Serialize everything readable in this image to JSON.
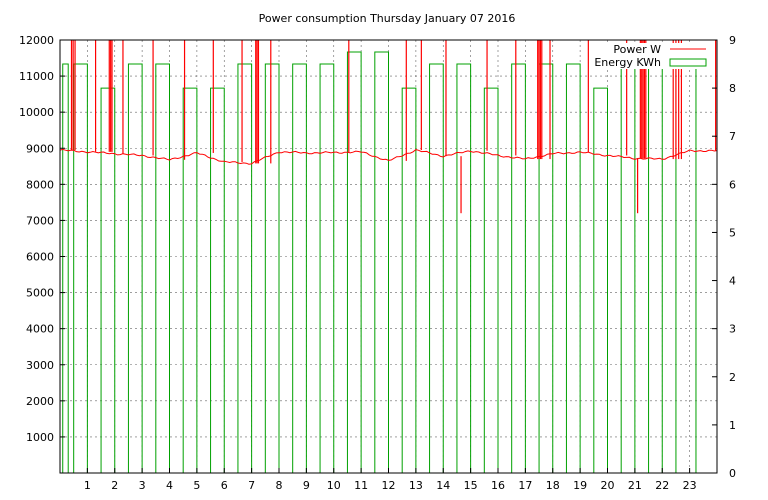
{
  "chart_data": {
    "type": "line",
    "title": "Power consumption Thursday January 07 2016",
    "x_ticks": [
      "1",
      "2",
      "3",
      "4",
      "5",
      "6",
      "7",
      "8",
      "9",
      "10",
      "11",
      "12",
      "13",
      "14",
      "15",
      "16",
      "17",
      "18",
      "19",
      "20",
      "21",
      "22",
      "23"
    ],
    "xlim": [
      0,
      24
    ],
    "y_ticks": [
      "1000",
      "2000",
      "3000",
      "4000",
      "5000",
      "6000",
      "7000",
      "8000",
      "9000",
      "10000",
      "11000",
      "12000"
    ],
    "ylim": [
      0,
      12000
    ],
    "y2_ticks": [
      "0",
      "1",
      "2",
      "3",
      "4",
      "5",
      "6",
      "7",
      "8",
      "9"
    ],
    "y2lim": [
      0,
      9
    ],
    "grid": true,
    "legend_position": "top-right",
    "colors": {
      "power": "#ff0000",
      "energy": "#00a000",
      "grid": "#666666"
    },
    "series": [
      {
        "name": "Power W",
        "axis": "left",
        "style": "line",
        "baseline_hourly": [
          8950,
          8900,
          8850,
          8800,
          8680,
          8870,
          8620,
          8580,
          8900,
          8870,
          8880,
          8900,
          8650,
          8950,
          8780,
          8930,
          8800,
          8700,
          8850,
          8890,
          8800,
          8720,
          8700,
          8930
        ],
        "spikes": [
          {
            "x": 0.42,
            "y": 12000
          },
          {
            "x": 0.48,
            "y": 12000
          },
          {
            "x": 0.55,
            "y": 12000
          },
          {
            "x": 1.3,
            "y": 12000
          },
          {
            "x": 1.8,
            "y": 12000
          },
          {
            "x": 1.85,
            "y": 12000
          },
          {
            "x": 1.9,
            "y": 12000
          },
          {
            "x": 2.3,
            "y": 12000
          },
          {
            "x": 3.4,
            "y": 12000
          },
          {
            "x": 4.55,
            "y": 12000
          },
          {
            "x": 5.6,
            "y": 12000
          },
          {
            "x": 6.65,
            "y": 12000
          },
          {
            "x": 7.15,
            "y": 12000
          },
          {
            "x": 7.2,
            "y": 12000
          },
          {
            "x": 7.25,
            "y": 12000
          },
          {
            "x": 7.7,
            "y": 12000
          },
          {
            "x": 10.55,
            "y": 12000
          },
          {
            "x": 12.65,
            "y": 12000
          },
          {
            "x": 13.2,
            "y": 12000
          },
          {
            "x": 14.1,
            "y": 12000
          },
          {
            "x": 14.65,
            "y": 7200
          },
          {
            "x": 15.6,
            "y": 12000
          },
          {
            "x": 16.65,
            "y": 12000
          },
          {
            "x": 17.45,
            "y": 12000
          },
          {
            "x": 17.5,
            "y": 12000
          },
          {
            "x": 17.55,
            "y": 12000
          },
          {
            "x": 17.6,
            "y": 12000
          },
          {
            "x": 17.9,
            "y": 12000
          },
          {
            "x": 19.3,
            "y": 12000
          },
          {
            "x": 20.7,
            "y": 12000
          },
          {
            "x": 21.1,
            "y": 7200
          },
          {
            "x": 21.2,
            "y": 12000
          },
          {
            "x": 21.25,
            "y": 12000
          },
          {
            "x": 21.3,
            "y": 12000
          },
          {
            "x": 21.35,
            "y": 12000
          },
          {
            "x": 21.4,
            "y": 12000
          },
          {
            "x": 22.4,
            "y": 12000
          },
          {
            "x": 22.5,
            "y": 12000
          },
          {
            "x": 22.6,
            "y": 12000
          },
          {
            "x": 22.7,
            "y": 12000
          },
          {
            "x": 23.95,
            "y": 12000
          }
        ]
      },
      {
        "name": "Energy KWh",
        "axis": "right",
        "style": "steps",
        "x": [
          0.1,
          0.5,
          1.5,
          2.5,
          3.5,
          4.5,
          5.5,
          6.5,
          7.5,
          8.5,
          9.5,
          10.5,
          11.5,
          12.5,
          13.5,
          14.5,
          15.5,
          16.5,
          17.5,
          18.5,
          19.5,
          20.5,
          21.5,
          22.5
        ],
        "values": [
          8.5,
          8.5,
          8.0,
          8.5,
          8.5,
          8.0,
          8.0,
          8.5,
          8.5,
          8.5,
          8.5,
          8.75,
          8.75,
          8.0,
          8.5,
          8.5,
          8.0,
          8.5,
          8.5,
          8.5,
          8.0,
          8.75,
          8.5,
          8.5
        ]
      }
    ]
  }
}
